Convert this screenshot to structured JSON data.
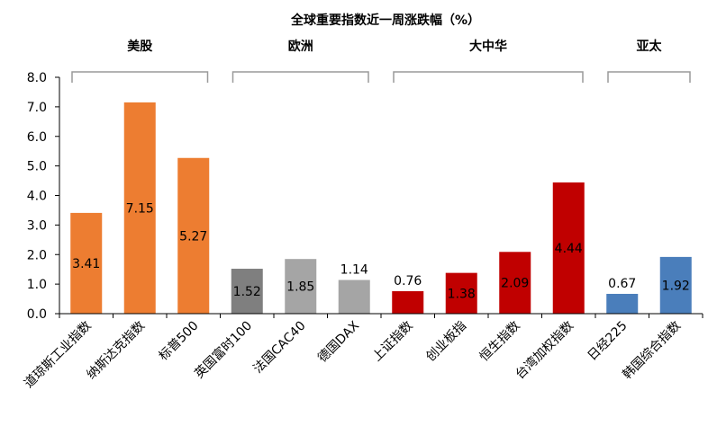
{
  "chart_data": {
    "type": "bar",
    "title": "全球重要指数近一周涨跌幅（%）",
    "xlabel": "",
    "ylabel": "",
    "ylim": [
      0,
      8
    ],
    "yticks": [
      "8.0",
      "7.0",
      "6.0",
      "5.0",
      "4.0",
      "3.0",
      "2.0",
      "1.0",
      "0.0"
    ],
    "grid": false,
    "legend": "none",
    "categories": [
      "道琼斯工业指数",
      "纳斯达克指数",
      "标普500",
      "英国富时100",
      "法国CAC40",
      "德国DAX",
      "上证指数",
      "创业板指",
      "恒生指数",
      "台湾加权指数",
      "日经225",
      "韩国综合指数"
    ],
    "values": [
      3.41,
      7.15,
      5.27,
      1.52,
      1.85,
      1.14,
      0.76,
      1.38,
      2.09,
      4.44,
      0.67,
      1.92
    ],
    "data_labels": [
      "3.41",
      "7.15",
      "5.27",
      "1.52",
      "1.85",
      "1.14",
      "0.76",
      "1.38",
      "2.09",
      "4.44",
      "0.67",
      "1.92"
    ],
    "colors": [
      "#ED7D31",
      "#ED7D31",
      "#ED7D31",
      "#7F7F7F",
      "#A5A5A5",
      "#A5A5A5",
      "#C00000",
      "#C00000",
      "#C00000",
      "#C00000",
      "#4A7EBB",
      "#4A7EBB"
    ],
    "groups": [
      {
        "name": "美股",
        "start": 0,
        "end": 2
      },
      {
        "name": "欧洲",
        "start": 3,
        "end": 5
      },
      {
        "name": "大中华",
        "start": 6,
        "end": 9
      },
      {
        "name": "亚太",
        "start": 10,
        "end": 11
      }
    ]
  }
}
